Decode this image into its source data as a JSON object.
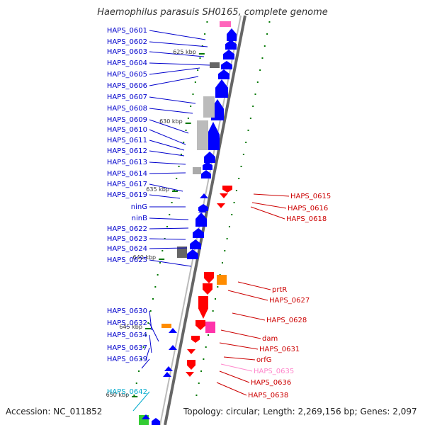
{
  "title": "Haemophilus parasuis SH0165, complete genome",
  "footer": {
    "accession": "Accession: NC_011852",
    "topology": "Topology: circular; Length: 2,269,156 bp; Genes: 2,097"
  },
  "colors": {
    "forward_gene": "#0000ff",
    "reverse_gene": "#ff0000",
    "rna": "#ff8c00",
    "pseudo": "#ff33aa",
    "pseudo_label": "#ff88cc",
    "hypothetical_grey": "#aaaaaa",
    "teal_label": "#00aacc",
    "tick": "#007700"
  },
  "kbp_markers": [
    "625 kbp",
    "630 kbp",
    "635 kbp",
    "640 kbp",
    "645 kbp",
    "650 kbp"
  ],
  "left_labels": [
    {
      "text": "HAPS_0601",
      "color": "#0000cc"
    },
    {
      "text": "HAPS_0602",
      "color": "#0000cc"
    },
    {
      "text": "HAPS_0603",
      "color": "#0000cc"
    },
    {
      "text": "HAPS_0604",
      "color": "#0000cc"
    },
    {
      "text": "HAPS_0605",
      "color": "#0000cc"
    },
    {
      "text": "HAPS_0606",
      "color": "#0000cc"
    },
    {
      "text": "HAPS_0607",
      "color": "#0000cc"
    },
    {
      "text": "HAPS_0608",
      "color": "#0000cc"
    },
    {
      "text": "HAPS_0609",
      "color": "#0000cc"
    },
    {
      "text": "HAPS_0610",
      "color": "#0000cc"
    },
    {
      "text": "HAPS_0611",
      "color": "#0000cc"
    },
    {
      "text": "HAPS_0612",
      "color": "#0000cc"
    },
    {
      "text": "HAPS_0613",
      "color": "#0000cc"
    },
    {
      "text": "HAPS_0614",
      "color": "#0000cc"
    },
    {
      "text": "HAPS_0617",
      "color": "#0000cc"
    },
    {
      "text": "HAPS_0619",
      "color": "#0000cc"
    },
    {
      "text": "ninG",
      "color": "#0000cc"
    },
    {
      "text": "ninB",
      "color": "#0000cc"
    },
    {
      "text": "HAPS_0622",
      "color": "#0000cc"
    },
    {
      "text": "HAPS_0623",
      "color": "#0000cc"
    },
    {
      "text": "HAPS_0624",
      "color": "#0000cc"
    },
    {
      "text": "HAPS_0625",
      "color": "#0000cc"
    },
    {
      "text": "HAPS_0630",
      "color": "#0000cc"
    },
    {
      "text": "HAPS_0632",
      "color": "#0000cc"
    },
    {
      "text": "HAPS_0634",
      "color": "#0000cc"
    },
    {
      "text": "HAPS_0637",
      "color": "#0000cc"
    },
    {
      "text": "HAPS_0639",
      "color": "#0000cc"
    },
    {
      "text": "HAPS_0642",
      "color": "#00aacc"
    }
  ],
  "right_labels": [
    {
      "text": "HAPS_0615",
      "color": "#cc0000"
    },
    {
      "text": "HAPS_0616",
      "color": "#cc0000"
    },
    {
      "text": "HAPS_0618",
      "color": "#cc0000"
    },
    {
      "text": "prtR",
      "color": "#cc0000"
    },
    {
      "text": "HAPS_0627",
      "color": "#cc0000"
    },
    {
      "text": "HAPS_0628",
      "color": "#cc0000"
    },
    {
      "text": "dam",
      "color": "#cc0000"
    },
    {
      "text": "HAPS_0631",
      "color": "#cc0000"
    },
    {
      "text": "orfG",
      "color": "#cc0000"
    },
    {
      "text": "HAPS_0635",
      "color": "#ff88cc"
    },
    {
      "text": "HAPS_0636",
      "color": "#cc0000"
    },
    {
      "text": "HAPS_0638",
      "color": "#cc0000"
    }
  ]
}
